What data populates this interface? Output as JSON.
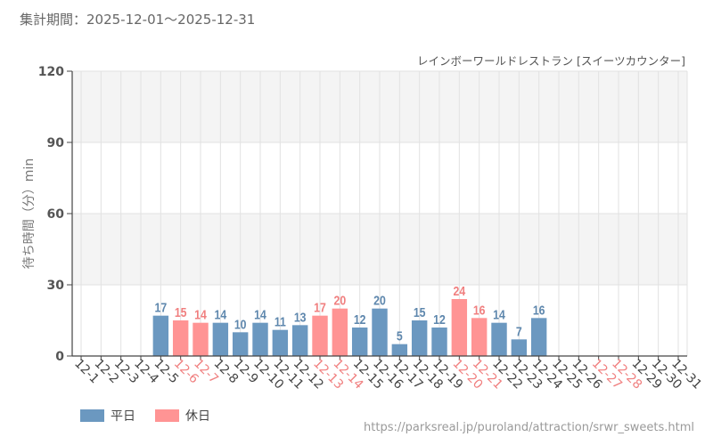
{
  "header": {
    "period": "集計期間：2025-12-01～2025-12-31",
    "subtitle": "レインボーワールドレストラン [スイーツカウンター]"
  },
  "legend": {
    "weekday_label": "平日",
    "holiday_label": "休日"
  },
  "footer": {
    "url": "https://parksreal.jp/puroland/attraction/srwr_sweets.html"
  },
  "colors": {
    "weekday": "#6b98c0",
    "holiday": "#ff9494",
    "weekday_text": "#5e87ad",
    "holiday_text": "#f07f7f",
    "band": "#f4f4f4",
    "grid": "#e2e2e2",
    "axis": "#444444"
  },
  "chart_data": {
    "type": "bar",
    "ylabel": "待ち時間（分）min",
    "xlabel": "",
    "ylim": [
      0,
      120
    ],
    "yticks": [
      0,
      30,
      60,
      90,
      120
    ],
    "categories": [
      "12-1",
      "12-2",
      "12-3",
      "12-4",
      "12-5",
      "12-6",
      "12-7",
      "12-8",
      "12-9",
      "12-10",
      "12-11",
      "12-12",
      "12-13",
      "12-14",
      "12-15",
      "12-16",
      "12-17",
      "12-18",
      "12-19",
      "12-20",
      "12-21",
      "12-22",
      "12-23",
      "12-24",
      "12-25",
      "12-26",
      "12-27",
      "12-28",
      "12-29",
      "12-30",
      "12-31"
    ],
    "values": [
      null,
      null,
      null,
      null,
      17,
      15,
      14,
      14,
      10,
      14,
      11,
      13,
      17,
      20,
      12,
      20,
      5,
      15,
      12,
      24,
      16,
      14,
      7,
      16,
      null,
      null,
      null,
      null,
      null,
      null,
      null
    ],
    "day_type": [
      "weekday",
      "weekday",
      "weekday",
      "weekday",
      "weekday",
      "holiday",
      "holiday",
      "weekday",
      "weekday",
      "weekday",
      "weekday",
      "weekday",
      "holiday",
      "holiday",
      "weekday",
      "weekday",
      "weekday",
      "weekday",
      "weekday",
      "holiday",
      "holiday",
      "weekday",
      "weekday",
      "weekday",
      "weekday",
      "weekday",
      "holiday",
      "holiday",
      "weekday",
      "weekday",
      "weekday"
    ],
    "series": [
      {
        "name": "平日",
        "key": "weekday"
      },
      {
        "name": "休日",
        "key": "holiday"
      }
    ]
  }
}
